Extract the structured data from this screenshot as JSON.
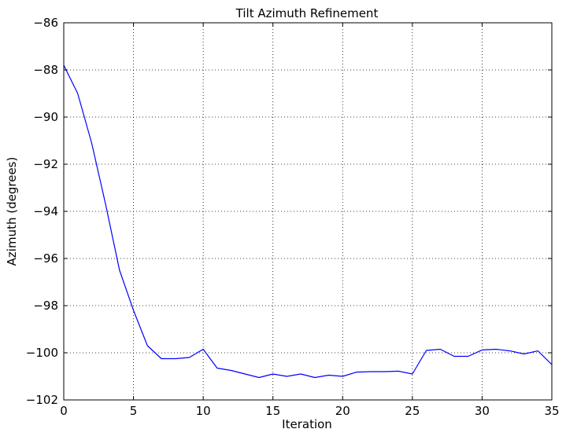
{
  "chart_data": {
    "type": "line",
    "title": "Tilt Azimuth Refinement",
    "xlabel": "Iteration",
    "ylabel": "Azimuth (degrees)",
    "xlim": [
      0,
      35
    ],
    "ylim": [
      -102,
      -86
    ],
    "xticks": [
      0,
      5,
      10,
      15,
      20,
      25,
      30,
      35
    ],
    "yticks": [
      -102,
      -100,
      -98,
      -96,
      -94,
      -92,
      -90,
      -88,
      -86
    ],
    "grid": true,
    "series_color": "#0000ff",
    "series": [
      {
        "x": [
          0,
          1,
          2,
          3,
          4,
          5,
          6,
          7,
          8,
          9,
          10,
          11,
          12,
          13,
          14,
          15,
          16,
          17,
          18,
          19,
          20,
          21,
          22,
          23,
          24,
          25,
          26,
          27,
          28,
          29,
          30,
          31,
          32,
          33,
          34,
          35
        ],
        "values": [
          -87.8,
          -89.0,
          -91.1,
          -93.7,
          -96.5,
          -98.2,
          -99.7,
          -100.25,
          -100.25,
          -100.2,
          -99.85,
          -100.65,
          -100.75,
          -100.9,
          -101.05,
          -100.9,
          -101.0,
          -100.9,
          -101.05,
          -100.95,
          -101.0,
          -100.82,
          -100.8,
          -100.8,
          -100.78,
          -100.9,
          -99.9,
          -99.85,
          -100.15,
          -100.15,
          -99.88,
          -99.85,
          -99.92,
          -100.05,
          -99.92,
          -100.5
        ]
      }
    ]
  }
}
